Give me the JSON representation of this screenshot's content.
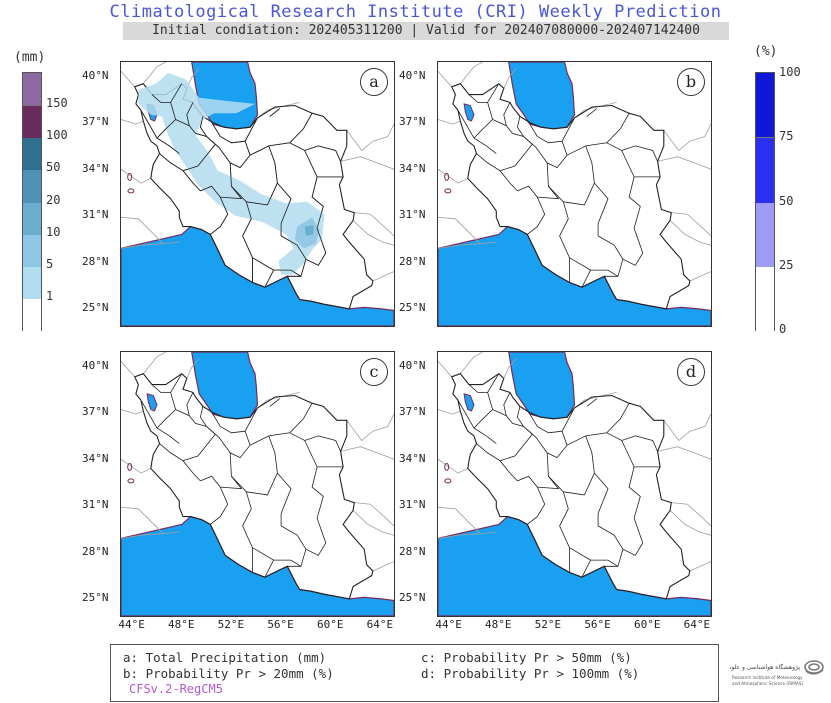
{
  "header": {
    "title": "Climatological Research Institute (CRI) Weekly Prediction",
    "subtitle": "Initial condiation: 202405311200 | Valid for 202407080000-202407142400"
  },
  "precip_colorbar": {
    "unit": "(mm)",
    "labels": [
      "150",
      "100",
      "50",
      "20",
      "10",
      "5",
      "1"
    ],
    "colors": [
      "#ffffff",
      "#b3dcf0",
      "#8ec6e6",
      "#6aaecf",
      "#4d93b6",
      "#2f6f8f",
      "#6a2a5f",
      "#8e6aa3"
    ]
  },
  "prob_colorbar": {
    "unit": "(%)",
    "labels": [
      "100",
      "75",
      "50",
      "25",
      "0"
    ],
    "colors": [
      "#ffffff",
      "#9d9cf5",
      "#2a2ff0",
      "#1018d8"
    ]
  },
  "panels": [
    {
      "letter": "a"
    },
    {
      "letter": "b"
    },
    {
      "letter": "c"
    },
    {
      "letter": "d"
    }
  ],
  "axes": {
    "lat_labels": [
      "40°N",
      "37°N",
      "34°N",
      "31°N",
      "28°N",
      "25°N"
    ],
    "lon_labels": [
      "44°E",
      "48°E",
      "52°E",
      "56°E",
      "60°E",
      "64°E"
    ]
  },
  "colors": {
    "sea": "#1aa0f0",
    "coast": "#7a2a5a",
    "border": "#222222",
    "neighbor_border": "#a0a0a0"
  },
  "legend": {
    "a": "a: Total Precipitation (mm)",
    "b": "b: Probability Pr > 20mm (%)",
    "c": "c: Probability Pr > 50mm (%)",
    "d": "d: Probability Pr > 100mm (%)",
    "model": "CFSv.2-RegCM5",
    "model_color": "#b25ad6"
  },
  "logo": {
    "text_fa": "پژوهشگاه هواشناسی و علوم جو",
    "text_en_1": "Research Institute of Meteorology",
    "text_en_2": "and Atmospheric Science (RIMAS)"
  }
}
